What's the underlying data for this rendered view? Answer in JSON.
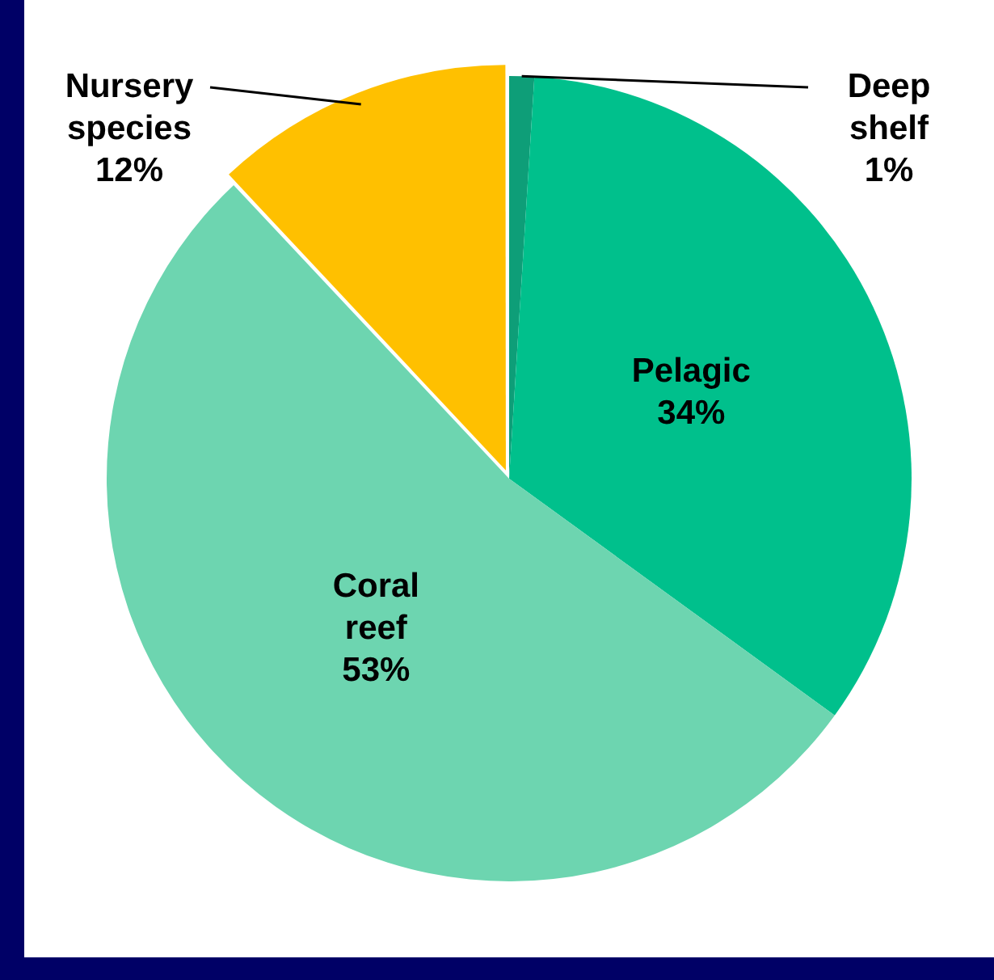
{
  "chart_data": {
    "type": "pie",
    "categories": [
      "Deep shelf",
      "Pelagic",
      "Coral reef",
      "Nursery species"
    ],
    "values": [
      1,
      34,
      53,
      12
    ],
    "colors": [
      "#0e9e78",
      "#00c08c",
      "#6dd5b0",
      "#ffc000"
    ],
    "value_labels": [
      "1%",
      "34%",
      "53%",
      "12%"
    ],
    "legend": false
  }
}
